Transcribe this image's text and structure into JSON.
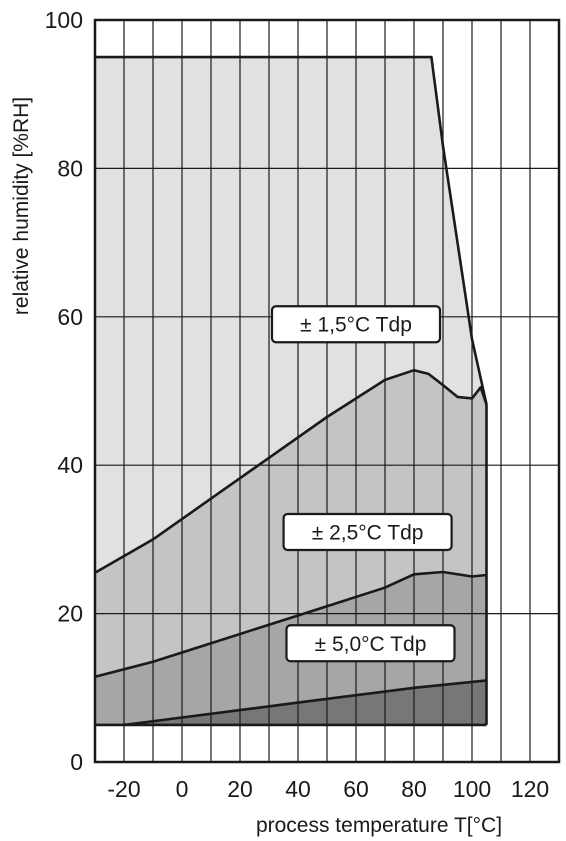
{
  "chart_data": {
    "type": "area",
    "xlabel": "process temperature T[°C]",
    "ylabel": "relative humidity [%RH]",
    "xlim": [
      -30,
      130
    ],
    "ylim": [
      0,
      100
    ],
    "x_ticks": [
      -20,
      0,
      20,
      40,
      60,
      80,
      100,
      120
    ],
    "x_tick_labels": [
      "-20",
      "0",
      "20",
      "40",
      "60",
      "80",
      "100",
      "120"
    ],
    "y_ticks": [
      0,
      20,
      40,
      60,
      80,
      100
    ],
    "y_tick_labels": [
      "0",
      "20",
      "40",
      "60",
      "80",
      "100"
    ],
    "grid": true,
    "colors": {
      "region_1_5": "#e1e1e1",
      "region_2_5": "#c4c4c4",
      "region_5_0": "#a6a6a6",
      "region_dark": "#777777",
      "line": "#1a1a1a"
    },
    "regions": [
      {
        "name": "± 1,5°C Tdp",
        "label": "± 1,5°C Tdp",
        "label_at": [
          60,
          59
        ],
        "upper": [
          [
            -30,
            95
          ],
          [
            86,
            95
          ],
          [
            90,
            83
          ],
          [
            95,
            70
          ],
          [
            100,
            57
          ],
          [
            105,
            48.2
          ]
        ],
        "lower_curve": "2.5"
      },
      {
        "name": "± 2,5°C Tdp",
        "label": "± 2,5°C Tdp",
        "label_at": [
          64,
          31
        ],
        "upper": [
          [
            -30,
            25.5
          ],
          [
            -10,
            30
          ],
          [
            10,
            35.5
          ],
          [
            30,
            41
          ],
          [
            50,
            46.5
          ],
          [
            70,
            51.5
          ],
          [
            80,
            52.8
          ],
          [
            85,
            52.3
          ],
          [
            90,
            50.8
          ],
          [
            95,
            49.2
          ],
          [
            100,
            49
          ],
          [
            103,
            50.5
          ],
          [
            105,
            48.2
          ]
        ],
        "lower_curve": "5.0"
      },
      {
        "name": "± 5,0°C Tdp",
        "label": "± 5,0°C Tdp",
        "label_at": [
          65,
          16
        ],
        "upper": [
          [
            -30,
            11.5
          ],
          [
            -10,
            13.5
          ],
          [
            10,
            16
          ],
          [
            30,
            18.5
          ],
          [
            50,
            21
          ],
          [
            70,
            23.5
          ],
          [
            80,
            25.3
          ],
          [
            90,
            25.6
          ],
          [
            100,
            25
          ],
          [
            105,
            25.2
          ]
        ],
        "lower_curve": "dark"
      },
      {
        "name": "dark",
        "upper": [
          [
            -20,
            5
          ],
          [
            0,
            6
          ],
          [
            20,
            7
          ],
          [
            40,
            8
          ],
          [
            60,
            9
          ],
          [
            80,
            10
          ],
          [
            100,
            10.8
          ],
          [
            105,
            11
          ]
        ],
        "lower": [
          [
            -30,
            5
          ],
          [
            105,
            5
          ]
        ]
      }
    ]
  }
}
